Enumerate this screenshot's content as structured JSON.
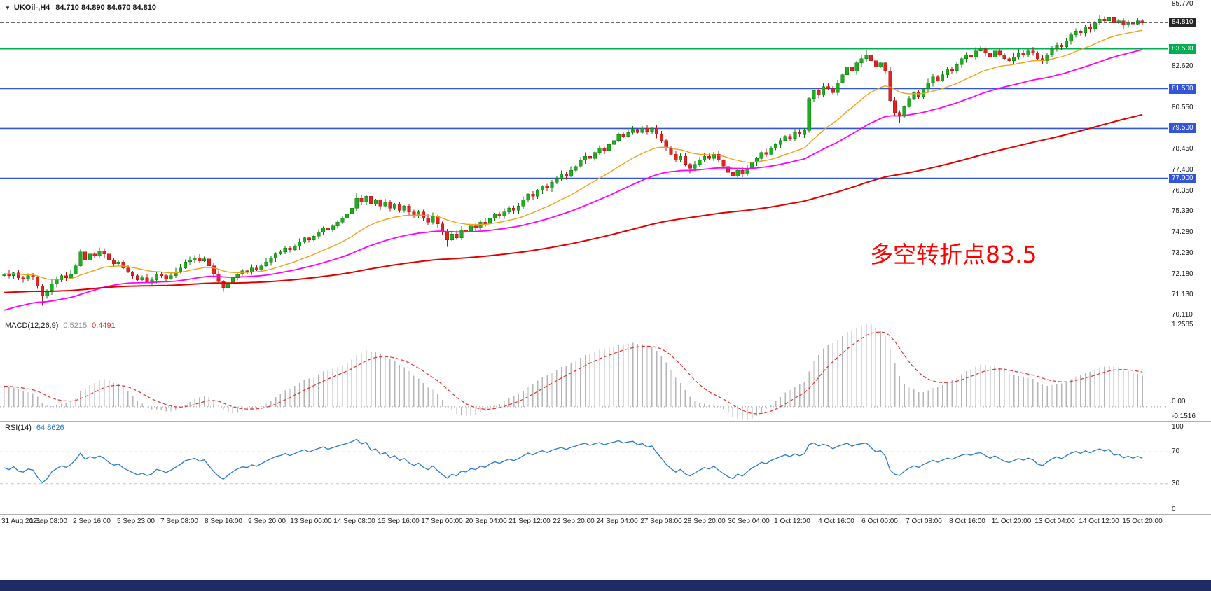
{
  "window": {
    "dropdown_glyph": "▼",
    "symbol_title": "UKOil-,H4",
    "ohlc_values": "84.710 84.890 84.670 84.810",
    "bottom_bar_color": "#1e2b66"
  },
  "annotation": {
    "text": "多空转折点83.5",
    "color": "#ff0000"
  },
  "macd_panel": {
    "label": "MACD(12,26,9)",
    "value_main": "0.5215",
    "value_signal": "0.4491",
    "axis_labels": {
      "top": "1.2585",
      "zero": "0.00",
      "bottom": "-0.1516"
    }
  },
  "rsi_panel": {
    "label": "RSI(14)",
    "value": "64.8626",
    "axis_labels": {
      "top": "100",
      "upper": "70",
      "lower": "30",
      "bottom": "0"
    },
    "levels": [
      70,
      30
    ]
  },
  "chart_data": {
    "type": "candlestick",
    "symbol": "UKOil-",
    "timeframe": "H4",
    "ohlc_header": {
      "open": "84.710",
      "high": "84.890",
      "low": "84.670",
      "close": "84.810"
    },
    "y_range": [
      69.95,
      85.95
    ],
    "y_axis": {
      "items": [
        {
          "label": "85.770",
          "price": 85.77,
          "type": "tick"
        },
        {
          "label": "84.810",
          "price": 84.81,
          "type": "badge",
          "color": "#262626"
        },
        {
          "label": "83.500",
          "price": 83.5,
          "type": "badge",
          "color": "#00b050"
        },
        {
          "label": "82.620",
          "price": 82.62,
          "type": "tick"
        },
        {
          "label": "81.500",
          "price": 81.5,
          "type": "badge",
          "color": "#3355d9"
        },
        {
          "label": "80.550",
          "price": 80.55,
          "type": "tick"
        },
        {
          "label": "79.500",
          "price": 79.5,
          "type": "badge",
          "color": "#3355d9"
        },
        {
          "label": "78.450",
          "price": 78.45,
          "type": "tick"
        },
        {
          "label": "77.400",
          "price": 77.4,
          "type": "tick"
        },
        {
          "label": "77.000",
          "price": 77.0,
          "type": "badge",
          "color": "#3355d9"
        },
        {
          "label": "76.350",
          "price": 76.35,
          "type": "tick"
        },
        {
          "label": "75.330",
          "price": 75.33,
          "type": "tick"
        },
        {
          "label": "74.280",
          "price": 74.28,
          "type": "tick"
        },
        {
          "label": "73.230",
          "price": 73.23,
          "type": "tick"
        },
        {
          "label": "72.180",
          "price": 72.18,
          "type": "tick"
        },
        {
          "label": "71.130",
          "price": 71.13,
          "type": "tick"
        },
        {
          "label": "70.110",
          "price": 70.11,
          "type": "tick"
        }
      ]
    },
    "x_axis_labels": [
      "31 Aug 2021",
      "1 Sep 08:00",
      "2 Sep 16:00",
      "5 Sep 23:00",
      "7 Sep 08:00",
      "8 Sep 16:00",
      "9 Sep 20:00",
      "13 Sep 00:00",
      "14 Sep 08:00",
      "15 Sep 16:00",
      "17 Sep 00:00",
      "20 Sep 04:00",
      "21 Sep 12:00",
      "22 Sep 20:00",
      "24 Sep 04:00",
      "27 Sep 08:00",
      "28 Sep 20:00",
      "30 Sep 04:00",
      "1 Oct 12:00",
      "4 Oct 16:00",
      "6 Oct 00:00",
      "7 Oct 08:00",
      "8 Oct 16:00",
      "11 Oct 20:00",
      "13 Oct 04:00",
      "14 Oct 12:00",
      "15 Oct 20:00"
    ],
    "candles": {
      "first_open": 72.1,
      "closes": [
        72.2,
        72.1,
        72.25,
        72.0,
        71.95,
        72.1,
        72.05,
        71.6,
        71.1,
        71.3,
        71.7,
        71.9,
        72.1,
        72.0,
        72.2,
        72.6,
        73.3,
        72.9,
        73.2,
        73.1,
        73.35,
        73.2,
        72.9,
        72.7,
        72.8,
        72.5,
        72.3,
        72.1,
        71.9,
        72.0,
        71.8,
        71.9,
        72.2,
        72.1,
        71.95,
        72.1,
        72.3,
        72.5,
        72.8,
        72.9,
        73.0,
        72.85,
        72.95,
        72.6,
        72.2,
        71.8,
        71.5,
        71.75,
        72.0,
        72.2,
        72.35,
        72.3,
        72.5,
        72.4,
        72.6,
        72.8,
        73.0,
        73.2,
        73.3,
        73.5,
        73.4,
        73.6,
        73.8,
        74.0,
        73.9,
        74.1,
        74.3,
        74.5,
        74.4,
        74.6,
        74.8,
        75.0,
        75.2,
        75.5,
        76.0,
        75.8,
        76.1,
        75.7,
        75.9,
        75.6,
        75.8,
        75.5,
        75.7,
        75.4,
        75.6,
        75.3,
        75.1,
        75.3,
        75.0,
        74.8,
        75.1,
        74.7,
        74.3,
        73.9,
        74.2,
        74.0,
        74.4,
        74.3,
        74.6,
        74.5,
        74.8,
        74.7,
        75.0,
        75.2,
        75.1,
        75.3,
        75.5,
        75.4,
        75.6,
        75.9,
        76.2,
        76.1,
        76.4,
        76.6,
        76.5,
        76.8,
        77.0,
        77.2,
        77.1,
        77.4,
        77.6,
        77.9,
        78.1,
        78.0,
        78.3,
        78.5,
        78.4,
        78.7,
        78.9,
        79.2,
        79.1,
        79.3,
        79.45,
        79.3,
        79.5,
        79.35,
        79.5,
        79.2,
        78.9,
        78.5,
        78.2,
        77.9,
        78.1,
        77.7,
        77.5,
        77.7,
        77.9,
        78.1,
        78.0,
        78.2,
        77.9,
        77.6,
        77.3,
        77.1,
        77.4,
        77.2,
        77.5,
        77.8,
        78.0,
        78.3,
        78.2,
        78.5,
        78.7,
        78.9,
        79.1,
        79.0,
        79.3,
        79.2,
        79.4,
        81.0,
        81.4,
        81.2,
        81.6,
        81.5,
        81.3,
        81.8,
        82.2,
        82.6,
        82.4,
        82.8,
        83.0,
        83.2,
        82.9,
        82.6,
        82.8,
        82.4,
        80.9,
        80.3,
        80.1,
        80.6,
        81.0,
        81.3,
        81.1,
        81.5,
        81.8,
        82.1,
        81.9,
        82.2,
        82.5,
        82.4,
        82.7,
        83.0,
        83.2,
        83.1,
        83.4,
        83.5,
        83.3,
        83.1,
        83.4,
        83.2,
        83.0,
        82.9,
        83.1,
        83.3,
        83.2,
        83.4,
        83.3,
        83.0,
        82.9,
        83.2,
        83.5,
        83.7,
        83.6,
        83.9,
        84.2,
        84.4,
        84.3,
        84.6,
        84.5,
        84.8,
        85.0,
        84.9,
        85.1,
        84.8,
        84.9,
        84.7,
        84.85,
        84.75,
        84.9,
        84.81
      ],
      "extremes": [
        {
          "i": 8,
          "low": 70.6
        },
        {
          "i": 16,
          "high": 73.45
        },
        {
          "i": 46,
          "low": 71.3
        },
        {
          "i": 74,
          "high": 76.28
        },
        {
          "i": 93,
          "low": 73.55
        },
        {
          "i": 134,
          "high": 79.62
        },
        {
          "i": 144,
          "low": 77.25
        },
        {
          "i": 153,
          "low": 76.85
        },
        {
          "i": 169,
          "high": 81.1
        },
        {
          "i": 181,
          "high": 83.42
        },
        {
          "i": 188,
          "low": 79.78
        },
        {
          "i": 232,
          "high": 85.32
        }
      ]
    },
    "colors": {
      "up": "#1fae1f",
      "up_stroke": "#0b7a0b",
      "down": "#e32222",
      "down_stroke": "#b01414"
    },
    "moving_averages": [
      {
        "name": "ma-fast",
        "color": "#efa21b",
        "period": 21,
        "width": 1.4
      },
      {
        "name": "ma-mid",
        "color": "#ff00ff",
        "period": 50,
        "init": 70.3,
        "width": 1.8
      },
      {
        "name": "ma-slow",
        "color": "#e00000",
        "period": 160,
        "init": 71.25,
        "width": 2.0
      }
    ],
    "horizontal_lines": [
      {
        "price": 84.81,
        "color": "#555555",
        "style": "dashed",
        "width": 1
      },
      {
        "price": 83.5,
        "color": "#00b050",
        "style": "solid",
        "width": 1.6
      },
      {
        "price": 81.5,
        "color": "#3355d9",
        "style": "solid",
        "width": 1.6
      },
      {
        "price": 79.5,
        "color": "#3355d9",
        "style": "solid",
        "width": 1.6
      },
      {
        "price": 77.0,
        "color": "#3355d9",
        "style": "solid",
        "width": 1.6
      }
    ],
    "macd": {
      "fast": 12,
      "slow": 26,
      "signal": 9,
      "fast_init": 72.0,
      "slow_init": 71.7,
      "histogram_color": "#b5b5b5",
      "signal_color": "#e03030"
    },
    "rsi": {
      "period": 14,
      "color": "#2878cf"
    }
  }
}
